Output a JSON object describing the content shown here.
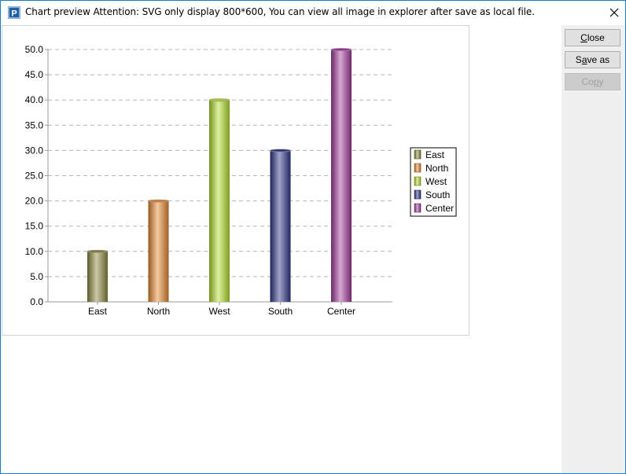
{
  "window": {
    "title": "Chart preview Attention: SVG only display 800*600, You can view all image in explorer after save as local file.",
    "app_icon_letter": "P"
  },
  "side_panel": {
    "buttons": [
      {
        "label": "Close",
        "mnemonic_index": 0,
        "enabled": true
      },
      {
        "label": "Save as",
        "mnemonic_index": 1,
        "enabled": true
      },
      {
        "label": "Copy",
        "mnemonic_index": 2,
        "enabled": false
      }
    ]
  },
  "chart_data": {
    "type": "bar",
    "categories": [
      "East",
      "North",
      "West",
      "South",
      "Center"
    ],
    "values": [
      10,
      20,
      40,
      30,
      50
    ],
    "colors": [
      "#8c8a3a",
      "#e8872f",
      "#b4e02c",
      "#2e3588",
      "#a53c9c"
    ],
    "legend": [
      "East",
      "North",
      "West",
      "South",
      "Center"
    ],
    "legend_position": "right",
    "title": "",
    "xlabel": "",
    "ylabel": "",
    "ylim": [
      0,
      50
    ],
    "y_ticks": [
      "0.0",
      "5.0",
      "10.0",
      "15.0",
      "20.0",
      "25.0",
      "30.0",
      "35.0",
      "40.0",
      "45.0",
      "50.0"
    ],
    "grid": true
  }
}
